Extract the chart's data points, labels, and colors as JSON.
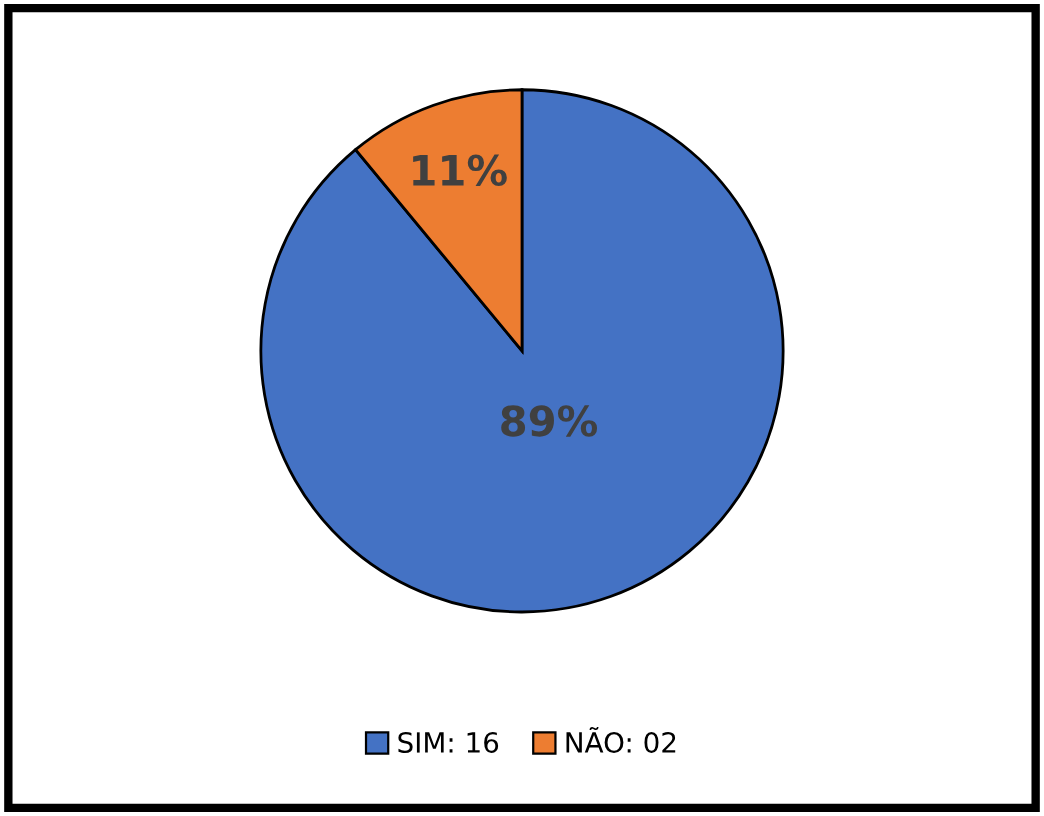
{
  "chart_data": {
    "type": "pie",
    "categories": [
      "SIM: 16",
      "NÃO: 02"
    ],
    "values": [
      89,
      11
    ],
    "colors": [
      "#4472c4",
      "#ed7d31"
    ],
    "value_labels": [
      "89%",
      "11%"
    ],
    "legend": "bottom"
  }
}
